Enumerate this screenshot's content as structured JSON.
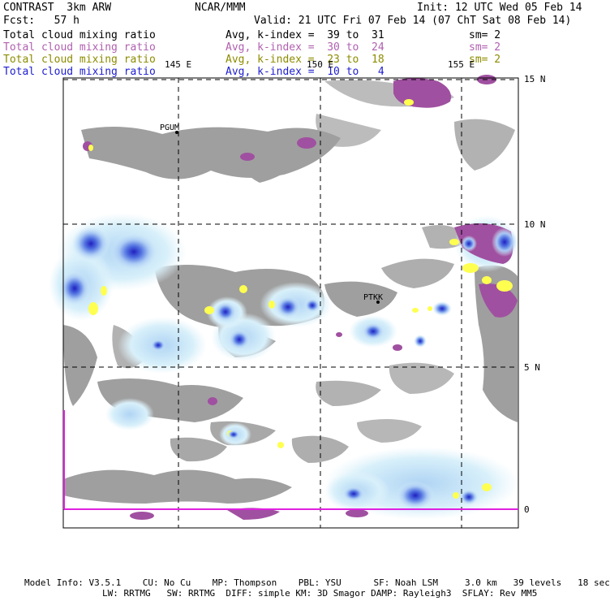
{
  "header": {
    "model": "CONTRAST  3km ARW",
    "center": "NCAR/MMM",
    "init": "Init: 12 UTC Wed 05 Feb 14",
    "fcst": "Fcst:   57 h",
    "valid": "Valid: 21 UTC Fri 07 Feb 14 (07 ChT Sat 08 Feb 14)"
  },
  "legend": [
    {
      "field": "Total cloud mixing ratio",
      "avg": "Avg, k-index =  39 to  31",
      "sm": "sm= 2",
      "color": "#000000"
    },
    {
      "field": "Total cloud mixing ratio",
      "avg": "Avg, k-index =  30 to  24",
      "sm": "sm= 2",
      "color": "#b060b0"
    },
    {
      "field": "Total cloud mixing ratio",
      "avg": "Avg, k-index =  23 to  18",
      "sm": "sm= 2",
      "color": "#8c8c00"
    },
    {
      "field": "Total cloud mixing ratio",
      "avg": "Avg, k-index =  10 to   4",
      "sm": "",
      "color": "#2020d0"
    }
  ],
  "map": {
    "lon_labels": [
      "145 E",
      "150 E",
      "155 E"
    ],
    "lat_labels": [
      "15 N",
      "10 N",
      "5 N",
      "0"
    ],
    "stations": [
      "PGUM",
      "PTKK"
    ]
  },
  "footer": {
    "line1": "Model Info: V3.5.1    CU: No Cu    MP: Thompson    PBL: YSU      SF: Noah LSM     3.0 km   39 levels   18 sec",
    "line2": "LW: RRTMG   SW: RRTMG  DIFF: simple KM: 3D Smagor DAMP: Rayleigh3  SFLAY: Rev MM5"
  },
  "colors": {
    "gray": "#9a9a9a",
    "purple": "#a050a0",
    "yellow": "#ffff50",
    "lightblue": "#d8f0fa",
    "midblue": "#88aaf0",
    "darkblue": "#2020c0",
    "magenta": "#e020e0"
  }
}
